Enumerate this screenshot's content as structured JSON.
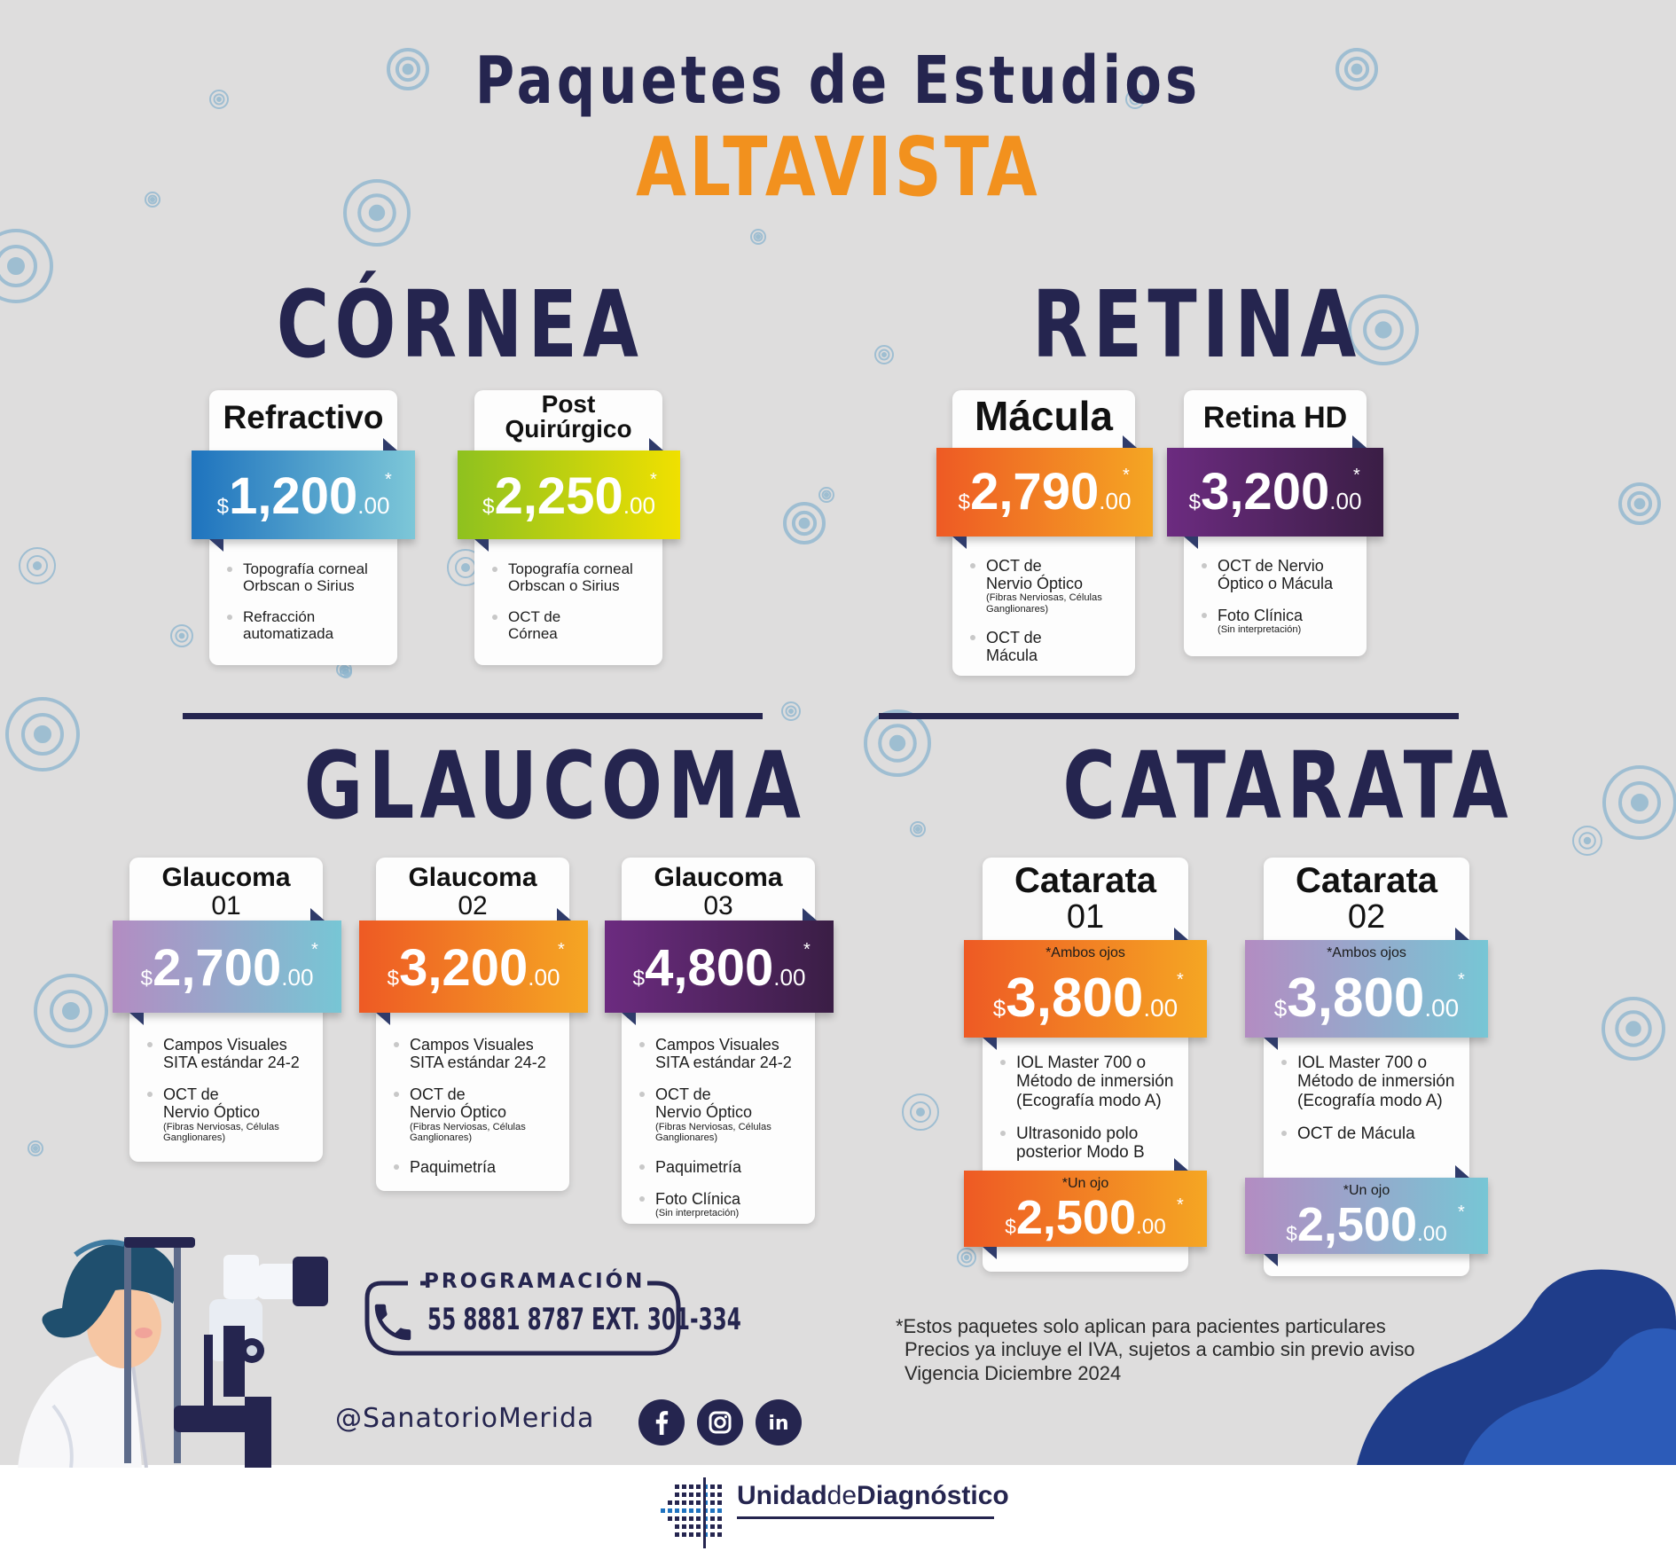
{
  "header": {
    "title": "Paquetes de Estudios",
    "brand": "ALTAVISTA"
  },
  "colors": {
    "navy": "#25254f",
    "orange": "#f2911e",
    "background": "#dedddd"
  },
  "sections": {
    "cornea": "CÓRNEA",
    "retina": "RETINA",
    "glaucoma": "GLAUCOMA",
    "catarata": "CATARATA"
  },
  "packages": {
    "refractivo": {
      "name": "Refractivo",
      "currency": "$",
      "price": "1,200",
      "cents": ".00",
      "star": "*",
      "items": [
        "Topografía corneal\nOrbscan o Sirius",
        "Refracción\nautomatizada"
      ]
    },
    "post": {
      "name": "Post\nQuirúrgico",
      "currency": "$",
      "price": "2,250",
      "cents": ".00",
      "star": "*",
      "items": [
        "Topografía corneal\nOrbscan o Sirius",
        "OCT de\nCórnea"
      ]
    },
    "macula": {
      "name": "Mácula",
      "currency": "$",
      "price": "2,790",
      "cents": ".00",
      "star": "*",
      "items": [
        {
          "main": "OCT de\nNervio Óptico",
          "sub": "(Fibras Nerviosas, Células Ganglionares)"
        },
        "OCT de\nMácula"
      ]
    },
    "retinahd": {
      "name": "Retina HD",
      "currency": "$",
      "price": "3,200",
      "cents": ".00",
      "star": "*",
      "items": [
        "OCT de Nervio\nÓptico o Mácula",
        {
          "main": "Foto Clínica",
          "sub": "(Sin interpretación)"
        }
      ]
    },
    "glaucoma01": {
      "name": "Glaucoma",
      "number": "01",
      "currency": "$",
      "price": "2,700",
      "cents": ".00",
      "star": "*",
      "items": [
        "Campos Visuales\nSITA estándar 24-2",
        {
          "main": "OCT de\nNervio Óptico",
          "sub": "(Fibras Nerviosas, Células Ganglionares)"
        }
      ]
    },
    "glaucoma02": {
      "name": "Glaucoma",
      "number": "02",
      "currency": "$",
      "price": "3,200",
      "cents": ".00",
      "star": "*",
      "items": [
        "Campos Visuales\nSITA estándar 24-2",
        {
          "main": "OCT de\nNervio Óptico",
          "sub": "(Fibras Nerviosas, Células Ganglionares)"
        },
        "Paquimetría"
      ]
    },
    "glaucoma03": {
      "name": "Glaucoma",
      "number": "03",
      "currency": "$",
      "price": "4,800",
      "cents": ".00",
      "star": "*",
      "items": [
        "Campos Visuales\nSITA estándar 24-2",
        {
          "main": "OCT de\nNervio Óptico",
          "sub": "(Fibras Nerviosas, Células Ganglionares)"
        },
        "Paquimetría",
        {
          "main": "Foto Clínica",
          "sub": "(Sin interpretación)"
        }
      ]
    },
    "catarata01": {
      "name": "Catarata",
      "number": "01",
      "both_label": "*Ambos ojos",
      "currency": "$",
      "price": "3,800",
      "cents": ".00",
      "star": "*",
      "items": [
        "IOL Master 700 o\nMétodo de inmersión\n(Ecografía modo A)",
        "Ultrasonido polo\nposterior Modo B"
      ],
      "one_label": "*Un ojo",
      "price2": "2,500",
      "cents2": ".00"
    },
    "catarata02": {
      "name": "Catarata",
      "number": "02",
      "both_label": "*Ambos ojos",
      "currency": "$",
      "price": "3,800",
      "cents": ".00",
      "star": "*",
      "items": [
        "IOL Master 700 o\nMétodo de inmersión\n(Ecografía modo A)",
        "OCT de Mácula"
      ],
      "one_label": "*Un ojo",
      "price2": "2,500",
      "cents2": ".00"
    }
  },
  "contact": {
    "label": "PROGRAMACIÓN",
    "phone": "55 8881 8787 EXT. 301-334",
    "phone_icon": "phone-icon"
  },
  "social": {
    "handle": "@SanatorioMerida",
    "icons": [
      "facebook-icon",
      "instagram-icon",
      "linkedin-icon"
    ]
  },
  "disclaimer": [
    "*Estos paquetes solo aplican para pacientes particulares",
    "Precios ya incluye el IVA, sujetos a cambio sin previo aviso",
    "Vigencia Diciembre 2024"
  ],
  "footer": {
    "logo_part1": "Unidad",
    "logo_part2": "de",
    "logo_part3": "Diagnóstico"
  }
}
